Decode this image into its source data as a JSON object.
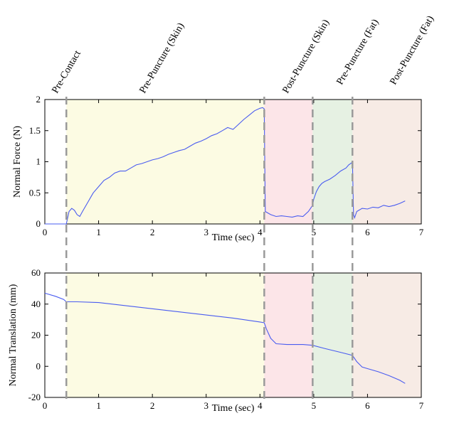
{
  "phase_labels": [
    "Pre-Contact",
    "Pre-Puncture (Skin)",
    "Post-Puncture (Skin)",
    "Pre-Puncture (Fat)",
    "Post-Puncture (Fat)"
  ],
  "chart_data": [
    {
      "type": "line",
      "xlabel": "Time (sec)",
      "ylabel": "Normal Force (N)",
      "xlim": [
        0,
        7
      ],
      "ylim": [
        0,
        2
      ],
      "xticks": [
        "0",
        "1",
        "2",
        "3",
        "4",
        "5",
        "6",
        "7"
      ],
      "yticks": [
        "0",
        "0.5",
        "1",
        "1.5",
        "2"
      ],
      "series_color": "#4a5cf0",
      "phase_boundaries": [
        0.4,
        4.08,
        4.98,
        5.72
      ],
      "phase_regions": [
        {
          "start": 0.4,
          "end": 4.08,
          "color": "#fcfbe3"
        },
        {
          "start": 4.08,
          "end": 4.98,
          "color": "#fce5e8"
        },
        {
          "start": 4.98,
          "end": 5.72,
          "color": "#e6f1e3"
        },
        {
          "start": 5.72,
          "end": 7.0,
          "color": "#f7ebe5"
        }
      ],
      "x": [
        0,
        0.4,
        0.45,
        0.5,
        0.55,
        0.6,
        0.65,
        0.7,
        0.8,
        0.9,
        1.0,
        1.1,
        1.2,
        1.3,
        1.4,
        1.5,
        1.6,
        1.7,
        1.8,
        1.9,
        2.0,
        2.1,
        2.2,
        2.3,
        2.4,
        2.5,
        2.6,
        2.7,
        2.8,
        2.9,
        3.0,
        3.1,
        3.2,
        3.3,
        3.4,
        3.5,
        3.6,
        3.7,
        3.8,
        3.9,
        4.0,
        4.05,
        4.08,
        4.1,
        4.2,
        4.3,
        4.4,
        4.5,
        4.6,
        4.7,
        4.8,
        4.9,
        4.98,
        5.0,
        5.05,
        5.1,
        5.15,
        5.2,
        5.3,
        5.4,
        5.5,
        5.6,
        5.65,
        5.7,
        5.72,
        5.74,
        5.76,
        5.8,
        5.9,
        6.0,
        6.1,
        6.2,
        6.3,
        6.4,
        6.5,
        6.6,
        6.7
      ],
      "y": [
        0,
        0,
        0.2,
        0.25,
        0.22,
        0.15,
        0.12,
        0.2,
        0.35,
        0.5,
        0.6,
        0.7,
        0.75,
        0.82,
        0.85,
        0.85,
        0.9,
        0.95,
        0.97,
        1.0,
        1.03,
        1.05,
        1.08,
        1.12,
        1.15,
        1.18,
        1.2,
        1.25,
        1.3,
        1.33,
        1.37,
        1.42,
        1.45,
        1.5,
        1.55,
        1.52,
        1.6,
        1.68,
        1.75,
        1.82,
        1.86,
        1.87,
        1.85,
        0.2,
        0.15,
        0.12,
        0.13,
        0.12,
        0.11,
        0.13,
        0.12,
        0.2,
        0.3,
        0.4,
        0.52,
        0.6,
        0.65,
        0.68,
        0.72,
        0.78,
        0.85,
        0.9,
        0.95,
        0.98,
        1.0,
        0.15,
        0.1,
        0.2,
        0.25,
        0.24,
        0.27,
        0.26,
        0.3,
        0.28,
        0.3,
        0.33,
        0.37
      ]
    },
    {
      "type": "line",
      "xlabel": "Time (sec)",
      "ylabel": "Normal Translation (mm)",
      "xlim": [
        0,
        7
      ],
      "ylim": [
        -20,
        60
      ],
      "xticks": [
        "0",
        "1",
        "2",
        "3",
        "4",
        "5",
        "6",
        "7"
      ],
      "yticks": [
        "-20",
        "0",
        "20",
        "40",
        "60"
      ],
      "series_color": "#4a5cf0",
      "phase_boundaries": [
        0.4,
        4.08,
        4.98,
        5.72
      ],
      "phase_regions": [
        {
          "start": 0.4,
          "end": 4.08,
          "color": "#fcfbe3"
        },
        {
          "start": 4.08,
          "end": 4.98,
          "color": "#fce5e8"
        },
        {
          "start": 4.98,
          "end": 5.72,
          "color": "#e6f1e3"
        },
        {
          "start": 5.72,
          "end": 7.0,
          "color": "#f7ebe5"
        }
      ],
      "x": [
        0,
        0.2,
        0.35,
        0.4,
        0.6,
        1.0,
        1.5,
        2.0,
        2.5,
        3.0,
        3.5,
        4.0,
        4.08,
        4.12,
        4.2,
        4.3,
        4.5,
        4.8,
        4.98,
        5.2,
        5.5,
        5.72,
        5.8,
        5.9,
        6.0,
        6.2,
        6.4,
        6.6,
        6.7
      ],
      "y": [
        47,
        45,
        43,
        41.5,
        41.5,
        41,
        39,
        37,
        35,
        33,
        31,
        28.5,
        28,
        24,
        18,
        14.5,
        14,
        14,
        13.5,
        11.5,
        9,
        7,
        3,
        -0.5,
        -1.5,
        -3.5,
        -6,
        -9,
        -11
      ]
    }
  ]
}
